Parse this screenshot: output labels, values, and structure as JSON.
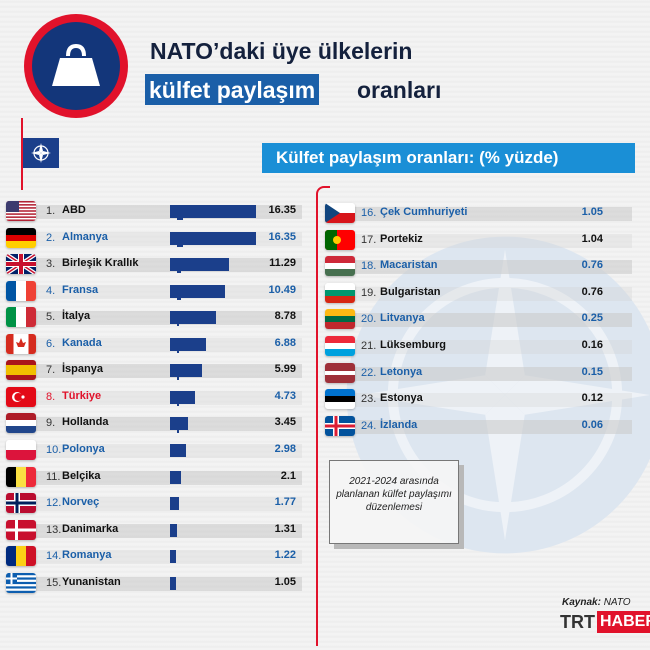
{
  "title": {
    "line1": "NATO’daki üye ülkelerin",
    "line2_highlight": "külfet paylaşım",
    "line2_rest": "oranları"
  },
  "subtitle": "Külfet paylaşım oranları: (% yüzde)",
  "icon": "weight-icon",
  "note": "2021-2024 arasında planlanan külfet paylaşımı düzenlemesi",
  "source_label": "Kaynak:",
  "source_value": "NATO",
  "brand": {
    "trt": "TRT",
    "haber": "HABER"
  },
  "colors": {
    "accent_red": "#e1122b",
    "bar": "#1b3f8b",
    "label_blue": "#1b5fa8",
    "subhead_bg": "#1a8fd6"
  },
  "chart_data": {
    "type": "bar",
    "title": "Külfet paylaşım oranları: (% yüzde)",
    "unit": "%",
    "categories": [
      "ABD",
      "Almanya",
      "Birleşik Krallık",
      "Fransa",
      "İtalya",
      "Kanada",
      "İspanya",
      "Türkiye",
      "Hollanda",
      "Polonya",
      "Belçika",
      "Norveç",
      "Danimarka",
      "Romanya",
      "Yunanistan",
      "Çek Cumhuriyeti",
      "Portekiz",
      "Macaristan",
      "Bulgaristan",
      "Litvanya",
      "Lüksemburg",
      "Letonya",
      "Estonya",
      "İzlanda"
    ],
    "ranks": [
      "1.",
      "2.",
      "3.",
      "4.",
      "5.",
      "6.",
      "7.",
      "8.",
      "9.",
      "10.",
      "11.",
      "12.",
      "13.",
      "14.",
      "15.",
      "16.",
      "17.",
      "18.",
      "19.",
      "20.",
      "21.",
      "22.",
      "23.",
      "24."
    ],
    "values": [
      16.35,
      16.35,
      11.29,
      10.49,
      8.78,
      6.88,
      5.99,
      4.73,
      3.45,
      2.98,
      2.1,
      1.77,
      1.31,
      1.22,
      1.05,
      1.05,
      1.04,
      0.76,
      0.76,
      0.25,
      0.16,
      0.15,
      0.12,
      0.06
    ],
    "value_labels": [
      "16.35",
      "16.35",
      "11.29",
      "10.49",
      "8.78",
      "6.88",
      "5.99",
      "4.73",
      "3.45",
      "2.98",
      "2.1",
      "1.77",
      "1.31",
      "1.22",
      "1.05",
      "1.05",
      "1.04",
      "0.76",
      "0.76",
      "0.25",
      "0.16",
      "0.15",
      "0.12",
      "0.06"
    ],
    "label_colors": [
      "dark",
      "blue",
      "dark",
      "blue",
      "dark",
      "blue",
      "dark",
      "red",
      "dark",
      "blue",
      "dark",
      "blue",
      "dark",
      "blue",
      "dark",
      "blue",
      "dark",
      "blue",
      "dark",
      "blue",
      "dark",
      "blue",
      "dark",
      "blue"
    ],
    "flags": [
      "us-flag-icon",
      "de-flag-icon",
      "gb-flag-icon",
      "fr-flag-icon",
      "it-flag-icon",
      "ca-flag-icon",
      "es-flag-icon",
      "tr-flag-icon",
      "nl-flag-icon",
      "pl-flag-icon",
      "be-flag-icon",
      "no-flag-icon",
      "dk-flag-icon",
      "ro-flag-icon",
      "gr-flag-icon",
      "cz-flag-icon",
      "pt-flag-icon",
      "hu-flag-icon",
      "bg-flag-icon",
      "lt-flag-icon",
      "lu-flag-icon",
      "lv-flag-icon",
      "ee-flag-icon",
      "is-flag-icon"
    ],
    "ylim": [
      0,
      16.35
    ]
  }
}
